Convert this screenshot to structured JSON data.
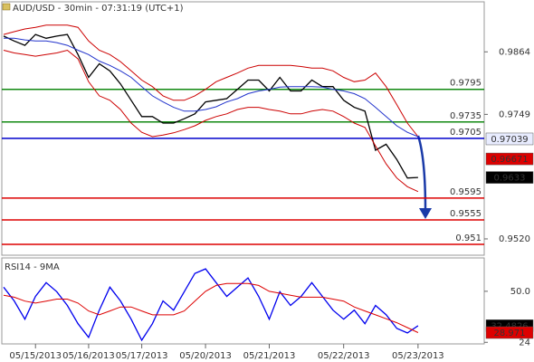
{
  "chart_data": [
    {
      "type": "line",
      "title": "AUD/USD - 30min - 07:31:19 (UTC+1)",
      "series": [
        {
          "color": "#000000",
          "values": [
            0.9893,
            0.9884,
            0.9876,
            0.9896,
            0.9889,
            0.9893,
            0.9896,
            0.9859,
            0.9817,
            0.9842,
            0.9829,
            0.9805,
            0.9775,
            0.9745,
            0.9745,
            0.9733,
            0.9733,
            0.9741,
            0.975,
            0.9772,
            0.9775,
            0.9778,
            0.9795,
            0.9812,
            0.9812,
            0.9792,
            0.9817,
            0.9792,
            0.9792,
            0.9812,
            0.98,
            0.98,
            0.9775,
            0.9762,
            0.9755,
            0.9683,
            0.9694,
            0.9666,
            0.9632,
            0.9633
          ]
        },
        {
          "color": "#cc0000",
          "values": [
            0.9896,
            0.9901,
            0.9906,
            0.9909,
            0.9913,
            0.9913,
            0.9913,
            0.9909,
            0.9884,
            0.9867,
            0.9859,
            0.9846,
            0.9829,
            0.9812,
            0.98,
            0.9783,
            0.9775,
            0.9775,
            0.9783,
            0.9795,
            0.9809,
            0.9817,
            0.9825,
            0.9834,
            0.9839,
            0.9839,
            0.9839,
            0.9839,
            0.9837,
            0.9834,
            0.9834,
            0.9829,
            0.9817,
            0.9809,
            0.9812,
            0.9825,
            0.98,
            0.9767,
            0.9733,
            0.9708
          ]
        },
        {
          "color": "#cc0000",
          "values": [
            0.9867,
            0.9862,
            0.9859,
            0.9856,
            0.9859,
            0.9862,
            0.9867,
            0.9851,
            0.9809,
            0.9783,
            0.9775,
            0.9758,
            0.9733,
            0.9716,
            0.9708,
            0.9711,
            0.9715,
            0.9721,
            0.9728,
            0.9738,
            0.9745,
            0.975,
            0.9758,
            0.9762,
            0.9762,
            0.9758,
            0.9755,
            0.975,
            0.975,
            0.9755,
            0.9758,
            0.9755,
            0.9745,
            0.9733,
            0.9725,
            0.9691,
            0.9658,
            0.9632,
            0.9616,
            0.9607
          ]
        },
        {
          "color": "#2233cc",
          "values": [
            0.9889,
            0.9889,
            0.9886,
            0.9884,
            0.9884,
            0.9881,
            0.9876,
            0.9867,
            0.9859,
            0.9847,
            0.9839,
            0.9829,
            0.9817,
            0.98,
            0.9783,
            0.9772,
            0.9762,
            0.9755,
            0.9755,
            0.9758,
            0.9763,
            0.9772,
            0.9778,
            0.9787,
            0.9792,
            0.9795,
            0.9799,
            0.98,
            0.98,
            0.98,
            0.9799,
            0.9795,
            0.9792,
            0.9787,
            0.9778,
            0.9762,
            0.9745,
            0.9728,
            0.9716,
            0.9708
          ]
        }
      ],
      "ylim": [
        0.949,
        0.9956
      ],
      "yticks": [
        0.9864,
        0.9749,
        {
          "value": 0.952,
          "label": "0.9520"
        }
      ],
      "levels": [
        {
          "value": 0.9795,
          "color": "#118811"
        },
        {
          "value": 0.9735,
          "color": "#118811"
        },
        {
          "value": 0.9705,
          "color": "#0000cc"
        },
        {
          "value": 0.9595,
          "color": "#dd0000"
        },
        {
          "value": 0.9555,
          "color": "#dd0000"
        },
        {
          "value": 0.951,
          "color": "#dd0000"
        }
      ],
      "markers": [
        {
          "value": 0.97039,
          "fill": "#e8ecff",
          "text_color": "#000066"
        },
        {
          "value": 0.96671,
          "fill": "#dd0000",
          "text_color": "#ffffff"
        },
        {
          "value": 0.9633,
          "fill": "#000000",
          "text_color": "#ffffff"
        }
      ]
    },
    {
      "type": "line",
      "title": "RSI14 - 9MA",
      "categories": [
        null,
        null,
        null,
        "05/15/2013",
        null,
        null,
        null,
        null,
        "05/16/2013",
        null,
        null,
        null,
        null,
        "05/17/2013",
        null,
        null,
        null,
        null,
        null,
        "05/20/2013",
        null,
        null,
        null,
        null,
        null,
        "05/21/2013",
        null,
        null,
        null,
        null,
        null,
        null,
        "05/22/2013",
        null,
        null,
        null,
        null,
        null,
        null,
        "05/23/2013"
      ],
      "series": [
        {
          "color": "#0000ee",
          "values": [
            52.1,
            45.1,
            35.8,
            47.4,
            54.4,
            49.8,
            42.8,
            33.5,
            26.5,
            40.4,
            52.1,
            45.1,
            35.8,
            25.1,
            33.5,
            45.1,
            40.4,
            49.8,
            59.1,
            61.4,
            54.4,
            47.4,
            52.1,
            56.8,
            47.4,
            35.8,
            49.8,
            42.8,
            47.4,
            54.4,
            47.4,
            40.4,
            35.8,
            40.4,
            33.5,
            42.8,
            38.1,
            31.1,
            28.8,
            32.4826
          ]
        },
        {
          "color": "#dd0000",
          "values": [
            48,
            47,
            45,
            44,
            45,
            46,
            46,
            44,
            40,
            38,
            40,
            42,
            42,
            40,
            38,
            38,
            38,
            40,
            45,
            50,
            53,
            54,
            54,
            54,
            53,
            50,
            49,
            48,
            47,
            47,
            47,
            46,
            45,
            42,
            40,
            38,
            36,
            34,
            31.5,
            28.971
          ]
        }
      ],
      "ylim": [
        23.2,
        67
      ],
      "yticks": [
        {
          "value": 50,
          "label": "50.0"
        },
        24
      ],
      "markers": [
        {
          "value": 32.4826,
          "fill": "#000000",
          "text_color": "#ffffff"
        },
        {
          "value": 28.971,
          "fill": "#dd0000",
          "text_color": "#ffffff"
        }
      ]
    }
  ]
}
